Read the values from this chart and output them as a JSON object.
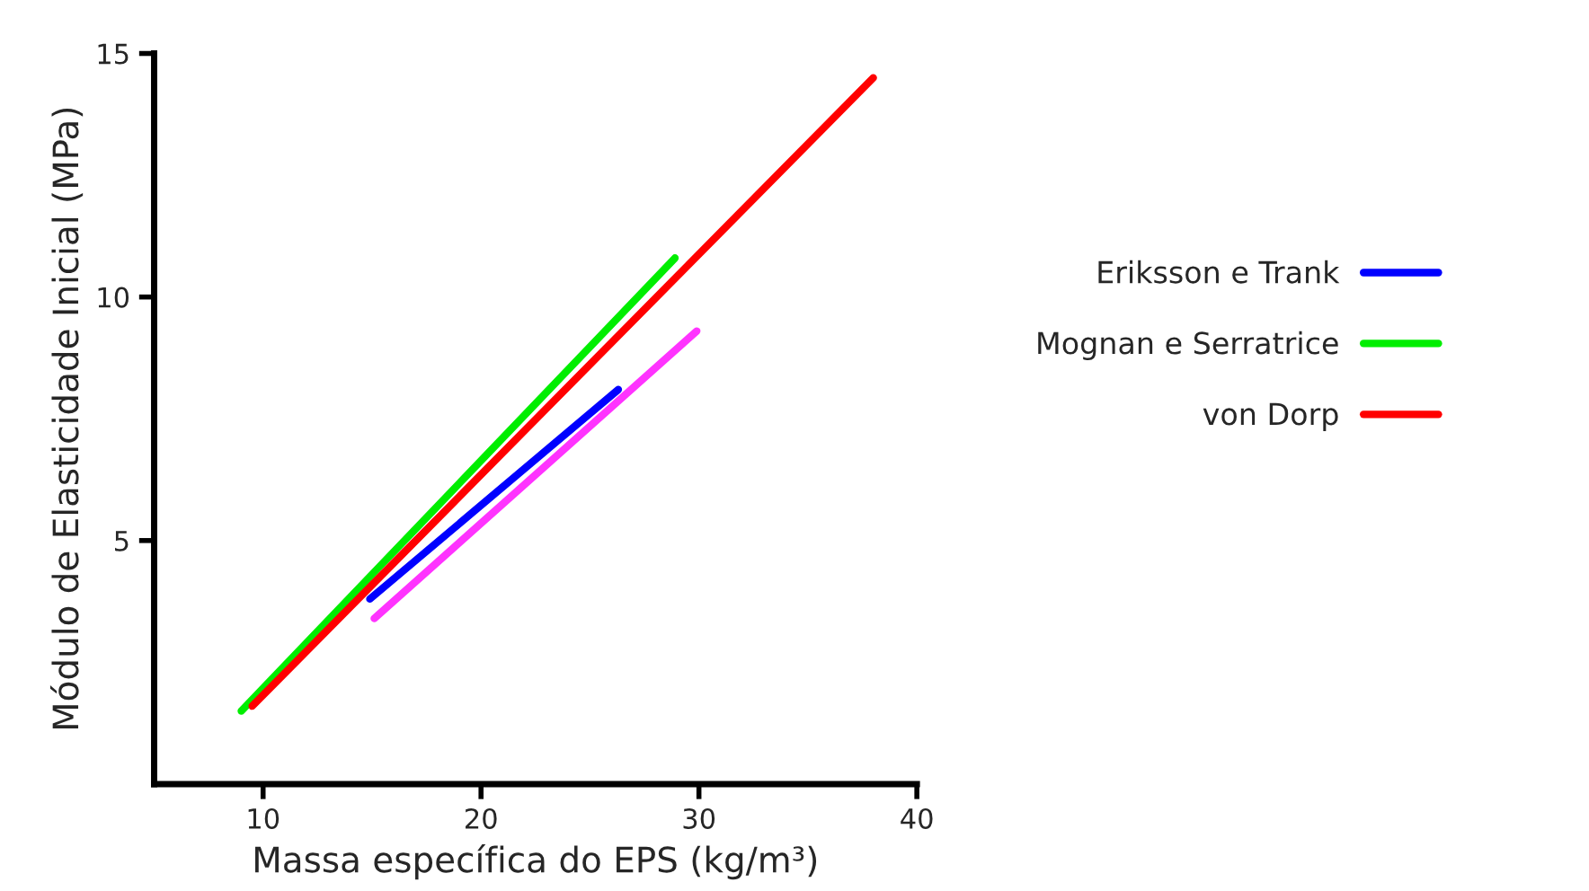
{
  "chart_data": {
    "type": "line",
    "xlabel": "Massa específica do EPS (kg/m³)",
    "ylabel": "Módulo de Elasticidade Inicial (MPa)",
    "xlim": [
      5,
      40
    ],
    "xticks": [
      10,
      20,
      30,
      40
    ],
    "ylim": [
      0,
      15
    ],
    "yticks": [
      5,
      10,
      15
    ],
    "grid": false,
    "legend": "right",
    "marker": "none",
    "line_style": "solid",
    "series": [
      {
        "color": "#ff33ff",
        "x": [
          15.1,
          29.9
        ],
        "values": [
          3.4,
          9.3
        ]
      },
      {
        "name": "Eriksson e Trank",
        "color": "#0000ff",
        "x": [
          14.9,
          26.3
        ],
        "values": [
          3.8,
          8.1
        ]
      },
      {
        "name": "Mognan e Serratrice",
        "color": "#00ee00",
        "x": [
          9.0,
          28.9
        ],
        "values": [
          1.5,
          10.8
        ]
      },
      {
        "name": "von Dorp",
        "color": "#ff0000",
        "x": [
          9.5,
          38.0
        ],
        "values": [
          1.6,
          14.5
        ]
      }
    ]
  }
}
